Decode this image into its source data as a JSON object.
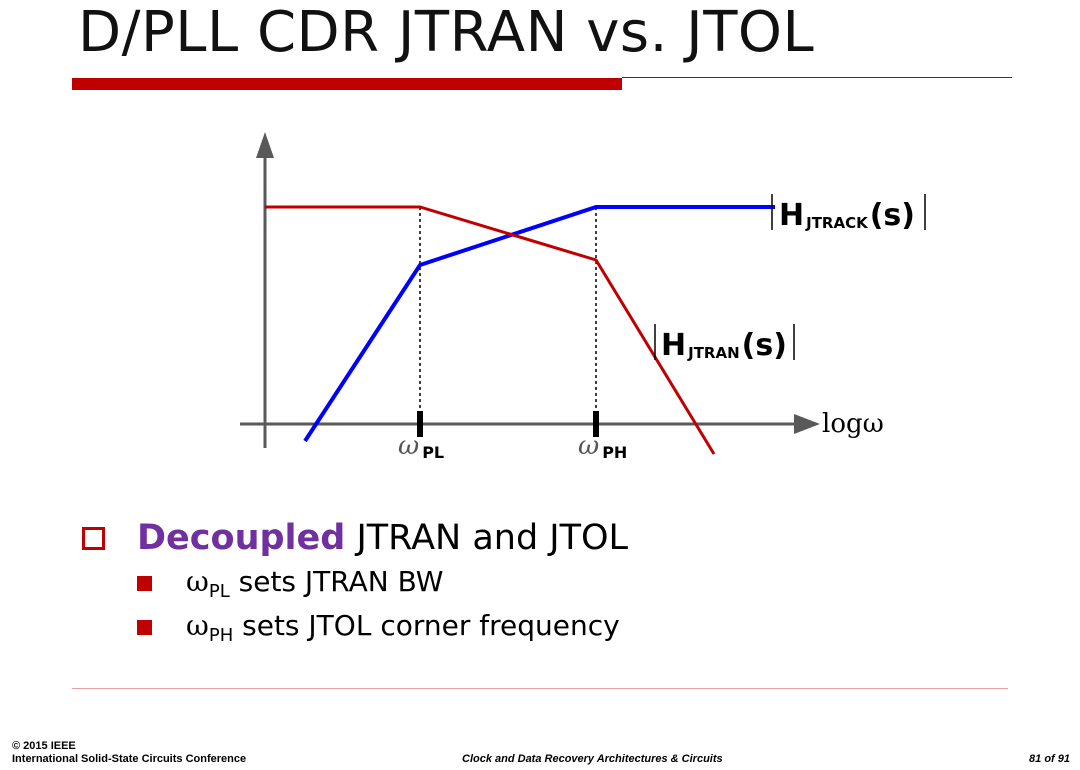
{
  "slide": {
    "title": "D/PLL CDR JTRAN vs. JTOL"
  },
  "diagram": {
    "x_axis_label": "logω",
    "x_ticks": [
      {
        "symbol": "ω",
        "sub": "PL"
      },
      {
        "symbol": "ω",
        "sub": "PH"
      }
    ],
    "curves": [
      {
        "label_main": "H",
        "label_sub": "JTRACK",
        "label_arg": "(s)",
        "color": "#0000ff"
      },
      {
        "label_main": "H",
        "label_sub": "JTRAN",
        "label_arg": "(s)",
        "color": "#c00000"
      }
    ]
  },
  "bullets": {
    "main_emphasis": "Decoupled",
    "main_rest": " JTRAN and JTOL",
    "items": [
      {
        "symbol": "ω",
        "sub": "PL",
        "text": " sets JTRAN BW"
      },
      {
        "symbol": "ω",
        "sub": "PH",
        "text": " sets JTOL corner frequency"
      }
    ]
  },
  "footer": {
    "copyright": "© 2015 IEEE",
    "conference": "International Solid-State Circuits Conference",
    "course": "Clock and Data Recovery Architectures & Circuits",
    "page": "81 of 91"
  },
  "colors": {
    "accent": "#c00000",
    "emphasis": "#7030a0",
    "jtrack": "#0000ff",
    "jtran": "#c00000",
    "axis": "#595959"
  }
}
